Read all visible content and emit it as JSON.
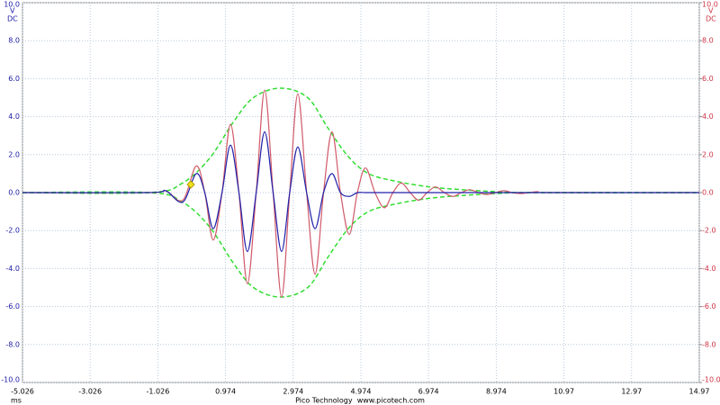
{
  "chart_data": {
    "type": "line",
    "xlim": [
      -5.026,
      14.974
    ],
    "xticks": [
      -5.026,
      -3.026,
      -1.026,
      0.974,
      2.974,
      4.974,
      6.974,
      8.974,
      {
        "value": 10.974,
        "label": "10.97"
      },
      {
        "value": 12.974,
        "label": "12.97"
      },
      {
        "value": 14.974,
        "label": "14.97"
      }
    ],
    "x_unit": "ms",
    "ylim": [
      -10,
      10
    ],
    "yticks": [
      {
        "value": 10,
        "label": "10.0"
      },
      {
        "value": 8,
        "label": "8.0"
      },
      {
        "value": 6,
        "label": "6.0"
      },
      {
        "value": 4,
        "label": "4.0"
      },
      {
        "value": 2,
        "label": "2.0"
      },
      {
        "value": 0,
        "label": "0.0"
      },
      {
        "value": -2,
        "label": "-2.0"
      },
      {
        "value": -4,
        "label": "-4.0"
      },
      {
        "value": -6,
        "label": "-6.0"
      },
      {
        "value": -8,
        "label": "-8.0"
      },
      {
        "value": -10,
        "label": "-10.0"
      }
    ],
    "y_unit": "V",
    "y_coupling": "DC",
    "y2lim": [
      -10,
      10
    ],
    "y2ticks": [
      {
        "value": 10,
        "label": "10.0"
      },
      {
        "value": 8,
        "label": "8.0"
      },
      {
        "value": 6,
        "label": "6.0"
      },
      {
        "value": 4,
        "label": "4.0"
      },
      {
        "value": 2,
        "label": "2.0"
      },
      {
        "value": 0,
        "label": "0.0"
      },
      {
        "value": -2,
        "label": "-2.0"
      },
      {
        "value": -4,
        "label": "-4.0"
      },
      {
        "value": -6,
        "label": "-6.0"
      },
      {
        "value": -8,
        "label": "-8.0"
      },
      {
        "value": -10,
        "label": "-10.0"
      }
    ],
    "y2_unit": "V",
    "y2_coupling": "DC",
    "y_color": "#1a1aa6",
    "y2_color": "#cc3344",
    "grid": true,
    "footer": "Pico Technology  www.picotech.com",
    "x": [
      -5.026,
      -1.3,
      -0.8,
      -0.29,
      0.107,
      0.36,
      0.61,
      0.87,
      1.12,
      1.37,
      1.62,
      1.88,
      2.13,
      2.38,
      2.63,
      2.87,
      3.11,
      3.37,
      3.62,
      3.87,
      4.12,
      4.37,
      4.63,
      4.87,
      5.11,
      5.39,
      5.67,
      5.92,
      6.17,
      6.43,
      6.68,
      6.93,
      7.18,
      7.44,
      7.69,
      7.94,
      8.19,
      8.45,
      8.7,
      8.95,
      9.2,
      9.45,
      9.7,
      9.95,
      10.2,
      10.5,
      14.974
    ],
    "series": [
      {
        "color": "#d05a6a",
        "axis": "y2",
        "values": [
          0,
          0,
          0.1,
          -0.4,
          1.4,
          0,
          -2.5,
          0,
          3.6,
          0,
          -4.8,
          0,
          5.4,
          0,
          -5.5,
          0,
          5.2,
          0,
          -4.3,
          0,
          3.2,
          0,
          -2.2,
          0,
          1.3,
          0,
          -0.8,
          0,
          0.5,
          0,
          -0.4,
          0,
          0.3,
          0,
          -0.2,
          0,
          0.15,
          0,
          -0.1,
          0,
          0.1,
          0,
          -0.05,
          0,
          0.05,
          0,
          0
        ]
      },
      {
        "color": "#2222aa",
        "values": [
          0,
          0,
          0.1,
          -0.5,
          1.0,
          0,
          -1.9,
          0,
          2.5,
          0,
          -3.1,
          0,
          3.2,
          0,
          -3.1,
          0,
          2.4,
          0,
          -1.9,
          0,
          1.0,
          0,
          -0.2,
          0,
          0,
          0,
          0,
          0,
          0,
          0,
          0,
          0,
          0,
          0,
          0,
          0,
          0,
          0,
          0,
          0,
          0,
          0,
          0,
          0,
          0,
          0,
          0
        ]
      },
      {
        "color": "#33dd33",
        "dashed": true,
        "x": [
          -5.026,
          -1.3,
          -0.3,
          0.5,
          1.2,
          1.8,
          2.6,
          3.4,
          4.0,
          4.6,
          5.2,
          6.0,
          7.0,
          8.0,
          9.0,
          10.0,
          14.974
        ],
        "values": [
          0,
          0,
          0.5,
          1.8,
          3.7,
          5.0,
          5.5,
          5.0,
          3.4,
          1.9,
          1.0,
          0.6,
          0.3,
          0.15,
          0.05,
          0,
          0
        ]
      },
      {
        "color": "#33dd33",
        "dashed": true,
        "x": [
          -5.026,
          -1.3,
          -0.3,
          0.5,
          1.2,
          1.8,
          2.6,
          3.4,
          4.0,
          4.6,
          5.2,
          6.0,
          7.0,
          8.0,
          9.0,
          10.0,
          14.974
        ],
        "values": [
          0,
          0,
          -0.5,
          -1.8,
          -3.7,
          -5.0,
          -5.5,
          -5.0,
          -3.4,
          -1.9,
          -1.0,
          -0.6,
          -0.3,
          -0.15,
          -0.05,
          0,
          0
        ]
      }
    ]
  }
}
